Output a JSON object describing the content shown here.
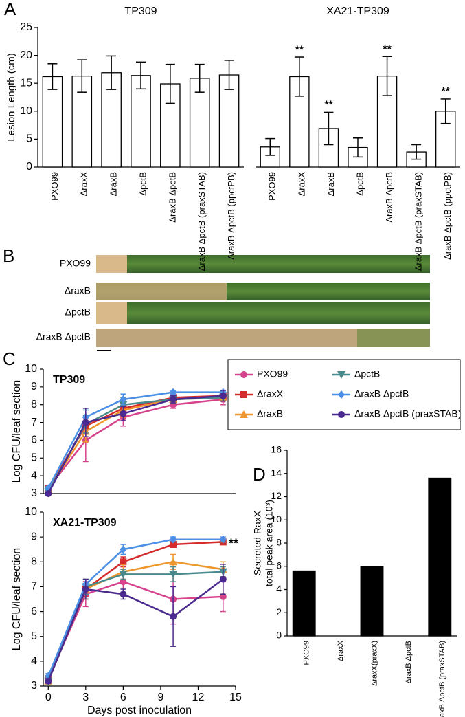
{
  "panel_labels": [
    "A",
    "B",
    "C",
    "D"
  ],
  "panel_b": {
    "labels": [
      "PXO99",
      "ΔraxB",
      "ΔpctB",
      "ΔraxB ΔpctB"
    ]
  },
  "chart_data": [
    {
      "type": "bar",
      "title": "TP309",
      "title_color": "#2f5ee8",
      "ylabel": "Lesion Length (cm)",
      "categories": [
        "PXO99",
        "ΔraxX",
        "ΔraxB",
        "ΔpctB",
        "ΔraxB ΔpctB",
        "ΔraxB ΔpctB (praxSTAB)",
        "ΔraxB ΔpctB (ppctPB)"
      ],
      "values": [
        16.2,
        16.3,
        16.9,
        16.4,
        14.9,
        15.9,
        16.5
      ],
      "errors": [
        2.3,
        2.9,
        3.0,
        2.4,
        3.5,
        2.5,
        2.6
      ],
      "color": "#ffffff",
      "edgecolor": "#000000",
      "ylim": [
        0,
        25
      ],
      "yticks": [
        0,
        5,
        10,
        15,
        20,
        25
      ]
    },
    {
      "type": "bar",
      "title": "XA21-TP309",
      "title_color": "#e8201c",
      "categories": [
        "PXO99",
        "ΔraxX",
        "ΔraxB",
        "ΔpctB",
        "ΔraxB ΔpctB",
        "ΔraxB ΔpctB (praxSTAB)",
        "ΔraxB ΔpctB (ppctPB)"
      ],
      "values": [
        3.6,
        16.2,
        6.9,
        3.5,
        16.3,
        2.7,
        10.0
      ],
      "errors": [
        1.5,
        3.5,
        2.9,
        1.7,
        3.5,
        1.3,
        2.2
      ],
      "significance": [
        null,
        "**",
        "**",
        null,
        "**",
        null,
        "**"
      ],
      "color": "#ffffff",
      "edgecolor": "#000000",
      "ylim": [
        0,
        25
      ]
    },
    {
      "type": "line",
      "title": "TP309",
      "ylabel": "Log CFU/leaf section",
      "legend": true,
      "x": [
        0,
        3,
        6,
        10,
        14
      ],
      "xlim": [
        -0.4,
        15
      ],
      "ylim": [
        3,
        10
      ],
      "yticks": [
        3,
        4,
        5,
        6,
        7,
        8,
        9,
        10
      ],
      "series": [
        {
          "name": "PXO99",
          "color": "#d6428c",
          "marker": "circle",
          "values": [
            3.3,
            6.0,
            7.3,
            8.0,
            8.3
          ],
          "errors": [
            0.1,
            1.2,
            0.5,
            0.2,
            0.3
          ]
        },
        {
          "name": "ΔraxX",
          "color": "#d62b2b",
          "marker": "square",
          "values": [
            3.3,
            6.8,
            7.8,
            8.4,
            8.5
          ],
          "errors": [
            0.1,
            0.6,
            0.4,
            0.2,
            0.2
          ]
        },
        {
          "name": "ΔraxB",
          "color": "#f0962e",
          "marker": "triangle",
          "values": [
            3.2,
            6.5,
            7.7,
            8.3,
            8.4
          ],
          "errors": [
            0.1,
            0.6,
            0.4,
            0.2,
            0.2
          ]
        },
        {
          "name": "ΔpctB",
          "color": "#4a8a8c",
          "marker": "triangle-down",
          "values": [
            3.1,
            6.9,
            8.0,
            8.3,
            8.4
          ],
          "errors": [
            0.1,
            0.5,
            0.4,
            0.2,
            0.2
          ]
        },
        {
          "name": "ΔraxB ΔpctB",
          "color": "#4b8fe6",
          "marker": "diamond",
          "values": [
            3.3,
            7.3,
            8.3,
            8.7,
            8.7
          ],
          "errors": [
            0.1,
            0.4,
            0.3,
            0.1,
            0.1
          ]
        },
        {
          "name": "ΔraxB ΔpctB (praxSTAB)",
          "color": "#4a2a8e",
          "marker": "circle",
          "values": [
            3.0,
            7.0,
            7.5,
            8.3,
            8.5
          ],
          "errors": [
            0.1,
            0.8,
            0.4,
            0.2,
            0.3
          ]
        }
      ]
    },
    {
      "type": "line",
      "title": "XA21-TP309",
      "ylabel": "Log CFU/leaf section",
      "xlabel": "Days post inoculation",
      "annotation": "**",
      "x": [
        0,
        3,
        6,
        10,
        14
      ],
      "xlim": [
        -0.4,
        15
      ],
      "xticks": [
        0,
        3,
        6,
        9,
        12,
        15
      ],
      "ylim": [
        3,
        10
      ],
      "yticks": [
        3,
        4,
        5,
        6,
        7,
        8,
        9,
        10
      ],
      "series": [
        {
          "color": "#d6428c",
          "marker": "circle",
          "values": [
            3.3,
            6.7,
            7.2,
            6.5,
            6.6
          ],
          "errors": [
            0.1,
            0.5,
            0.5,
            1.0,
            0.6
          ]
        },
        {
          "color": "#d62b2b",
          "marker": "square",
          "values": [
            3.3,
            6.9,
            8.0,
            8.7,
            8.8
          ],
          "errors": [
            0.1,
            0.3,
            0.2,
            0.1,
            0.1
          ]
        },
        {
          "color": "#f0962e",
          "marker": "triangle",
          "values": [
            3.2,
            6.9,
            7.6,
            8.0,
            7.7
          ],
          "errors": [
            0.1,
            0.4,
            0.3,
            0.3,
            0.3
          ]
        },
        {
          "color": "#4a8a8c",
          "marker": "triangle-down",
          "values": [
            3.2,
            7.0,
            7.5,
            7.5,
            7.6
          ],
          "errors": [
            0.1,
            0.3,
            0.2,
            0.3,
            0.2
          ]
        },
        {
          "color": "#4b8fe6",
          "marker": "diamond",
          "values": [
            3.4,
            7.1,
            8.5,
            8.9,
            8.9
          ],
          "errors": [
            0.1,
            0.2,
            0.2,
            0.1,
            0.1
          ]
        },
        {
          "color": "#4a2a8e",
          "marker": "circle",
          "values": [
            3.2,
            6.9,
            6.7,
            5.8,
            7.3
          ],
          "errors": [
            0.1,
            0.4,
            0.2,
            1.2,
            0.6
          ]
        }
      ]
    },
    {
      "type": "bar",
      "ylabel": [
        "Secreted RaxX",
        "total peak area (10³)"
      ],
      "categories": [
        "PXO99",
        "ΔraxX",
        "ΔraxX(praxX)",
        "ΔraxB ΔpctB",
        "ΔraxB ΔpctB (praxSTAB)"
      ],
      "values": [
        5.6,
        0,
        6.0,
        0,
        13.6
      ],
      "color": "#000000",
      "edgecolor": "#000000",
      "ylim": [
        0,
        16
      ],
      "yticks": [
        0,
        2,
        4,
        6,
        8,
        10,
        12,
        14,
        16
      ]
    }
  ]
}
